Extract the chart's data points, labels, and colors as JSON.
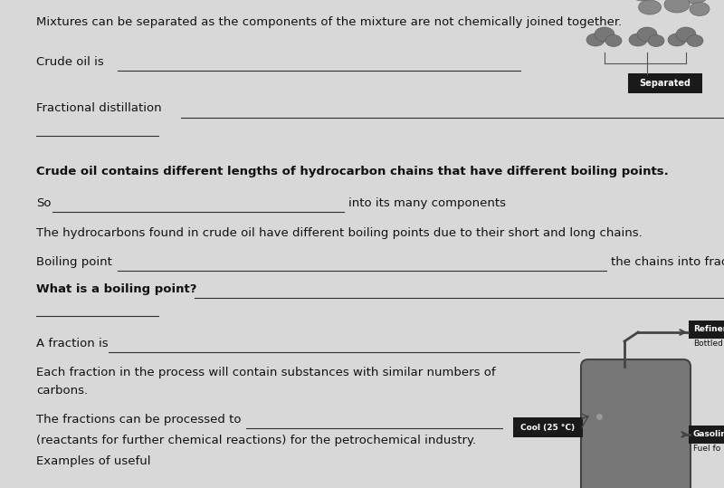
{
  "bg_color": "#d8d8d8",
  "text_color": "#111111",
  "title_text": "Mixtures can be separated as the components of the mixture are not chemically joined together.",
  "separated_label": "Separated",
  "separated_box_color": "#1a1a1a",
  "separated_text_color": "#ffffff",
  "cool_label": "Cool (25 °C)",
  "line_color": "#333333",
  "line_width": 0.8,
  "fs": 9.5,
  "diagram_vessel_color": "#777777",
  "diagram_vessel_edge": "#444444"
}
